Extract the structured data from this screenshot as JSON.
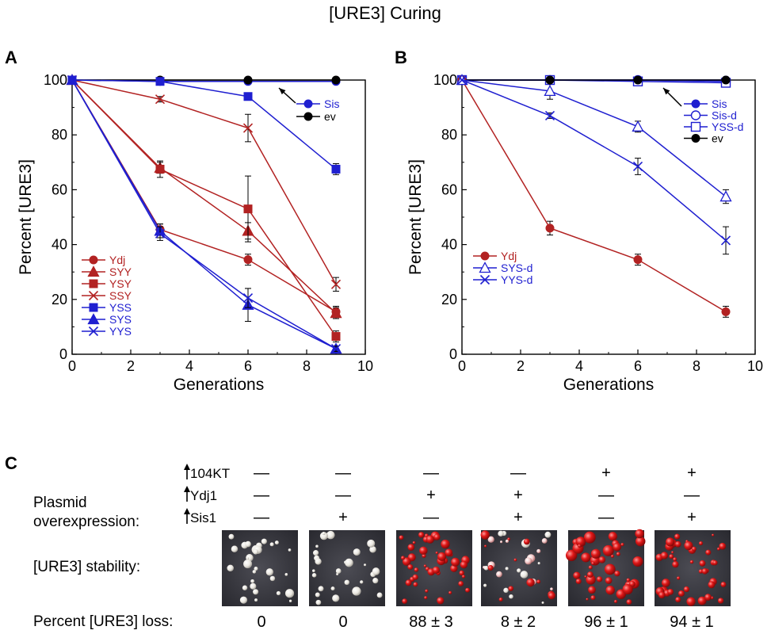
{
  "figure_title": "[URE3] Curing",
  "colors": {
    "red": "#b22222",
    "blue": "#1f1fd0",
    "black": "#000000"
  },
  "chart_data": [
    {
      "panel": "A",
      "type": "line",
      "xlabel": "Generations",
      "ylabel": "Percent [URE3]",
      "xlim": [
        0,
        10
      ],
      "ylim": [
        0,
        100
      ],
      "xticks": [
        0,
        2,
        4,
        6,
        8,
        10
      ],
      "yticks": [
        0,
        20,
        40,
        60,
        80,
        100
      ],
      "x": [
        0,
        3,
        6,
        9
      ],
      "series": [
        {
          "name": "Sis",
          "color": "blue",
          "marker": "circle",
          "values": [
            100,
            99.5,
            99.5,
            99.5
          ],
          "err": [
            0,
            0,
            0,
            0
          ]
        },
        {
          "name": "ev",
          "color": "black",
          "marker": "circle",
          "values": [
            100,
            100,
            100,
            100
          ],
          "err": [
            0,
            0,
            0,
            0
          ]
        },
        {
          "name": "Ydj",
          "color": "red",
          "marker": "circle",
          "values": [
            100,
            45.5,
            34.5,
            15.5
          ],
          "err": [
            0,
            2,
            2,
            2
          ]
        },
        {
          "name": "SYY",
          "color": "red",
          "marker": "triangle",
          "values": [
            100,
            68,
            45,
            15
          ],
          "err": [
            0,
            2,
            3,
            2
          ]
        },
        {
          "name": "YSY",
          "color": "red",
          "marker": "square",
          "values": [
            100,
            67.5,
            53,
            6.5
          ],
          "err": [
            0,
            3,
            12,
            2
          ]
        },
        {
          "name": "SSY",
          "color": "red",
          "marker": "x",
          "values": [
            100,
            93,
            82.5,
            25.5
          ],
          "err": [
            0,
            1,
            5,
            2.5
          ]
        },
        {
          "name": "YSS",
          "color": "blue",
          "marker": "square",
          "values": [
            100,
            99.5,
            94,
            67.5
          ],
          "err": [
            0,
            0,
            0,
            2
          ]
        },
        {
          "name": "SYS",
          "color": "blue",
          "marker": "triangle",
          "values": [
            100,
            45,
            18,
            2
          ],
          "err": [
            0,
            2.5,
            6,
            1
          ]
        },
        {
          "name": "YYS",
          "color": "blue",
          "marker": "x",
          "values": [
            100,
            44,
            20.5,
            2
          ],
          "err": [
            0,
            2.5,
            3.5,
            1
          ]
        }
      ],
      "legend_top": [
        "Sis",
        "ev"
      ],
      "legend_bottom": [
        "Ydj",
        "SYY",
        "YSY",
        "SSY",
        "YSS",
        "SYS",
        "YYS"
      ]
    },
    {
      "panel": "B",
      "type": "line",
      "xlabel": "Generations",
      "ylabel": "Percent [URE3]",
      "xlim": [
        0,
        10
      ],
      "ylim": [
        0,
        100
      ],
      "xticks": [
        0,
        2,
        4,
        6,
        8,
        10
      ],
      "yticks": [
        0,
        20,
        40,
        60,
        80,
        100
      ],
      "x": [
        0,
        3,
        6,
        9
      ],
      "series": [
        {
          "name": "Sis",
          "color": "blue",
          "marker": "circle",
          "values": [
            100,
            100,
            100,
            100
          ],
          "err": [
            0,
            0,
            0,
            0
          ]
        },
        {
          "name": "Sis-d",
          "color": "blue",
          "marker": "open-circle",
          "values": [
            100,
            100,
            100,
            99.5
          ],
          "err": [
            0,
            0,
            0,
            0
          ]
        },
        {
          "name": "YSS-d",
          "color": "blue",
          "marker": "open-square",
          "values": [
            100,
            100,
            99.5,
            99
          ],
          "err": [
            0,
            0,
            0,
            0
          ]
        },
        {
          "name": "ev",
          "color": "black",
          "marker": "circle",
          "values": [
            100,
            100,
            100,
            100
          ],
          "err": [
            0,
            0,
            0,
            0
          ]
        },
        {
          "name": "Ydj",
          "color": "red",
          "marker": "circle",
          "values": [
            100,
            46,
            34.5,
            15.5
          ],
          "err": [
            0,
            2.5,
            2,
            2
          ]
        },
        {
          "name": "SYS-d",
          "color": "blue",
          "marker": "open-triangle",
          "values": [
            100,
            96,
            83,
            57.5
          ],
          "err": [
            0,
            3,
            2,
            2.5
          ]
        },
        {
          "name": "YYS-d",
          "color": "blue",
          "marker": "x",
          "values": [
            100,
            87,
            68.5,
            41.5
          ],
          "err": [
            0,
            1,
            3,
            5
          ]
        }
      ],
      "legend_top": [
        "Sis",
        "Sis-d",
        "YSS-d",
        "ev"
      ],
      "legend_bottom": [
        "Ydj",
        "SYS-d",
        "YYS-d"
      ]
    }
  ],
  "panel_c": {
    "label": "C",
    "plasmid_label_line1": "Plasmid",
    "plasmid_label_line2": "overexpression:",
    "rows": [
      {
        "name": "104KT",
        "values": [
          "—",
          "—",
          "—",
          "—",
          "+",
          "+"
        ]
      },
      {
        "name": "Ydj1",
        "values": [
          "—",
          "—",
          "+",
          "+",
          "—",
          "—"
        ]
      },
      {
        "name": "Sis1",
        "values": [
          "—",
          "+",
          "—",
          "+",
          "—",
          "+"
        ]
      }
    ],
    "stability_label": "[URE3] stability:",
    "loss_label": "Percent [URE3] loss:",
    "loss_values": [
      "0",
      "0",
      "88 ± 3",
      "8 ± 2",
      "96 ± 1",
      "94 ± 1"
    ],
    "dish_colony_colors": [
      "white",
      "white",
      "red",
      "mixed",
      "red",
      "red"
    ]
  }
}
